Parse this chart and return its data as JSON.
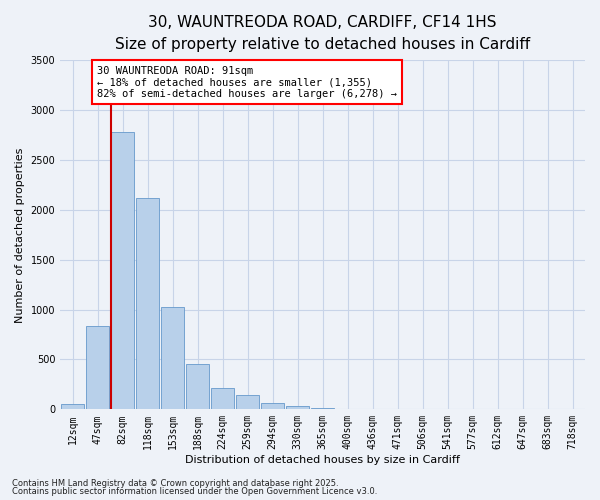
{
  "title_line1": "30, WAUNTREODA ROAD, CARDIFF, CF14 1HS",
  "title_line2": "Size of property relative to detached houses in Cardiff",
  "xlabel": "Distribution of detached houses by size in Cardiff",
  "ylabel": "Number of detached properties",
  "categories": [
    "12sqm",
    "47sqm",
    "82sqm",
    "118sqm",
    "153sqm",
    "188sqm",
    "224sqm",
    "259sqm",
    "294sqm",
    "330sqm",
    "365sqm",
    "400sqm",
    "436sqm",
    "471sqm",
    "506sqm",
    "541sqm",
    "577sqm",
    "612sqm",
    "647sqm",
    "683sqm",
    "718sqm"
  ],
  "values": [
    55,
    840,
    2780,
    2120,
    1030,
    450,
    210,
    145,
    65,
    35,
    10,
    5,
    0,
    0,
    0,
    0,
    0,
    0,
    0,
    0,
    0
  ],
  "bar_color": "#b8d0ea",
  "bar_edge_color": "#6699cc",
  "grid_color": "#c8d4e8",
  "background_color": "#eef2f8",
  "vline_color": "#cc0000",
  "annotation_box_text": "30 WAUNTREODA ROAD: 91sqm\n← 18% of detached houses are smaller (1,355)\n82% of semi-detached houses are larger (6,278) →",
  "ylim": [
    0,
    3500
  ],
  "yticks": [
    0,
    500,
    1000,
    1500,
    2000,
    2500,
    3000,
    3500
  ],
  "footer1": "Contains HM Land Registry data © Crown copyright and database right 2025.",
  "footer2": "Contains public sector information licensed under the Open Government Licence v3.0.",
  "title_fontsize": 11,
  "subtitle_fontsize": 9,
  "axis_label_fontsize": 8,
  "tick_fontsize": 7,
  "annotation_fontsize": 7.5,
  "footer_fontsize": 6
}
